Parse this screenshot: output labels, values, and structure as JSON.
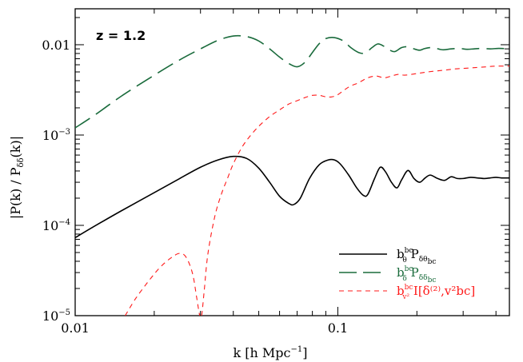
{
  "chart_data": {
    "type": "line",
    "annotation": "z = 1.2",
    "xlabel": "k [h Mpc^{-1}]",
    "xlabel_parts": {
      "main": "k  [h Mpc",
      "sup": "−1",
      "end": "]"
    },
    "ylabel": "|P(k) / P_δδ(k)|",
    "ylabel_parts": {
      "main": "|P(k) / P",
      "sub": "δδ",
      "end": "(k)|"
    },
    "xscale": "log",
    "yscale": "log",
    "xlim": [
      0.01,
      0.45
    ],
    "ylim": [
      1e-05,
      0.025
    ],
    "x_ticks": [
      {
        "value": 0.01,
        "label": "0.01"
      },
      {
        "value": 0.1,
        "label": "0.1"
      }
    ],
    "y_ticks": [
      {
        "value": 0.01,
        "label": "0.01",
        "base": "0.01",
        "exp": ""
      },
      {
        "value": 0.001,
        "label": "10^-3",
        "base": "10",
        "exp": "−3"
      },
      {
        "value": 0.0001,
        "label": "10^-4",
        "base": "10",
        "exp": "−4"
      },
      {
        "value": 1e-05,
        "label": "10^-5",
        "base": "10",
        "exp": "−5"
      }
    ],
    "legend_position": "bottom-right",
    "series": [
      {
        "name": "b_θ^bc P_δθ_bc",
        "legend": {
          "b": "b",
          "sup": "bc",
          "sub": "θ",
          "mid": " P",
          "sub2": "δθ",
          "subsub": "bc",
          "tail": ""
        },
        "color": "#000000",
        "dash": "solid",
        "x": [
          0.01,
          0.012,
          0.015,
          0.02,
          0.025,
          0.03,
          0.035,
          0.04,
          0.045,
          0.05,
          0.055,
          0.06,
          0.065,
          0.068,
          0.072,
          0.078,
          0.085,
          0.092,
          0.097,
          0.102,
          0.11,
          0.118,
          0.125,
          0.13,
          0.138,
          0.145,
          0.152,
          0.16,
          0.168,
          0.175,
          0.185,
          0.195,
          0.205,
          0.215,
          0.225,
          0.24,
          0.255,
          0.27,
          0.285,
          0.3,
          0.32,
          0.34,
          0.36,
          0.38,
          0.4,
          0.42,
          0.45
        ],
        "y": [
          7.3e-05,
          0.0001,
          0.000145,
          0.00023,
          0.00033,
          0.00044,
          0.00053,
          0.00058,
          0.00055,
          0.00043,
          0.0003,
          0.00021,
          0.000175,
          0.00017,
          0.0002,
          0.00033,
          0.00047,
          0.00053,
          0.00053,
          0.00048,
          0.00036,
          0.00026,
          0.000215,
          0.00022,
          0.00033,
          0.00044,
          0.00039,
          0.0003,
          0.00026,
          0.00032,
          0.000405,
          0.00033,
          0.0003,
          0.000335,
          0.00036,
          0.00033,
          0.000315,
          0.000345,
          0.00033,
          0.00033,
          0.00034,
          0.000335,
          0.00033,
          0.000335,
          0.00034,
          0.000335,
          0.000335
        ]
      },
      {
        "name": "b_δ^bc P_δδ_bc",
        "legend": {
          "b": "b",
          "sup": "bc",
          "sub": "δ",
          "mid": " P",
          "sub2": "δδ",
          "subsub": "bc",
          "tail": ""
        },
        "color": "#1a6b3c",
        "dash": "long",
        "x": [
          0.01,
          0.012,
          0.015,
          0.02,
          0.025,
          0.03,
          0.035,
          0.04,
          0.045,
          0.05,
          0.055,
          0.06,
          0.065,
          0.07,
          0.075,
          0.08,
          0.085,
          0.09,
          0.097,
          0.105,
          0.112,
          0.12,
          0.127,
          0.135,
          0.142,
          0.15,
          0.158,
          0.165,
          0.175,
          0.185,
          0.195,
          0.205,
          0.215,
          0.23,
          0.25,
          0.27,
          0.29,
          0.31,
          0.33,
          0.35,
          0.38,
          0.41,
          0.45
        ],
        "y": [
          0.0012,
          0.0017,
          0.0027,
          0.0046,
          0.0068,
          0.009,
          0.0112,
          0.0125,
          0.0123,
          0.011,
          0.009,
          0.0073,
          0.0062,
          0.0057,
          0.0064,
          0.0082,
          0.0103,
          0.0117,
          0.012,
          0.011,
          0.0093,
          0.0082,
          0.0081,
          0.0093,
          0.0102,
          0.0096,
          0.0087,
          0.0084,
          0.0093,
          0.0095,
          0.009,
          0.0087,
          0.0091,
          0.0093,
          0.0088,
          0.009,
          0.0091,
          0.0089,
          0.009,
          0.0091,
          0.009,
          0.0091,
          0.009
        ]
      },
      {
        "name": "b_v²^bc I[δ^(2), v_bc²]",
        "legend": {
          "b": "b",
          "sup": "bc",
          "sub": "v²",
          "mid": " I[δ",
          "sub2": "",
          "subsub": "",
          "tail": "⁽²⁾,v²bc]"
        },
        "color": "#ff1a1a",
        "dash": "short",
        "x": [
          0.0155,
          0.017,
          0.019,
          0.021,
          0.023,
          0.025,
          0.0265,
          0.028,
          0.029,
          0.0298,
          0.0303,
          0.031,
          0.032,
          0.034,
          0.036,
          0.038,
          0.04,
          0.043,
          0.046,
          0.05,
          0.055,
          0.06,
          0.065,
          0.07,
          0.075,
          0.08,
          0.085,
          0.09,
          0.095,
          0.1,
          0.11,
          0.12,
          0.13,
          0.14,
          0.15,
          0.16,
          0.17,
          0.18,
          0.2,
          0.22,
          0.25,
          0.28,
          0.31,
          0.34,
          0.37,
          0.4,
          0.45
        ],
        "y": [
          1e-05,
          1.55e-05,
          2.4e-05,
          3.4e-05,
          4.3e-05,
          4.9e-05,
          4.4e-05,
          2.9e-05,
          1.6e-05,
          1e-05,
          1e-05,
          1.9e-05,
          4.8e-05,
          0.000125,
          0.00022,
          0.00033,
          0.00048,
          0.00072,
          0.00095,
          0.00125,
          0.0016,
          0.0019,
          0.0022,
          0.0024,
          0.0026,
          0.00275,
          0.00275,
          0.00265,
          0.00265,
          0.0028,
          0.0034,
          0.0038,
          0.0043,
          0.0045,
          0.0043,
          0.0045,
          0.0047,
          0.0046,
          0.0048,
          0.005,
          0.0052,
          0.0054,
          0.0055,
          0.0056,
          0.0057,
          0.0058,
          0.0058
        ]
      }
    ]
  }
}
